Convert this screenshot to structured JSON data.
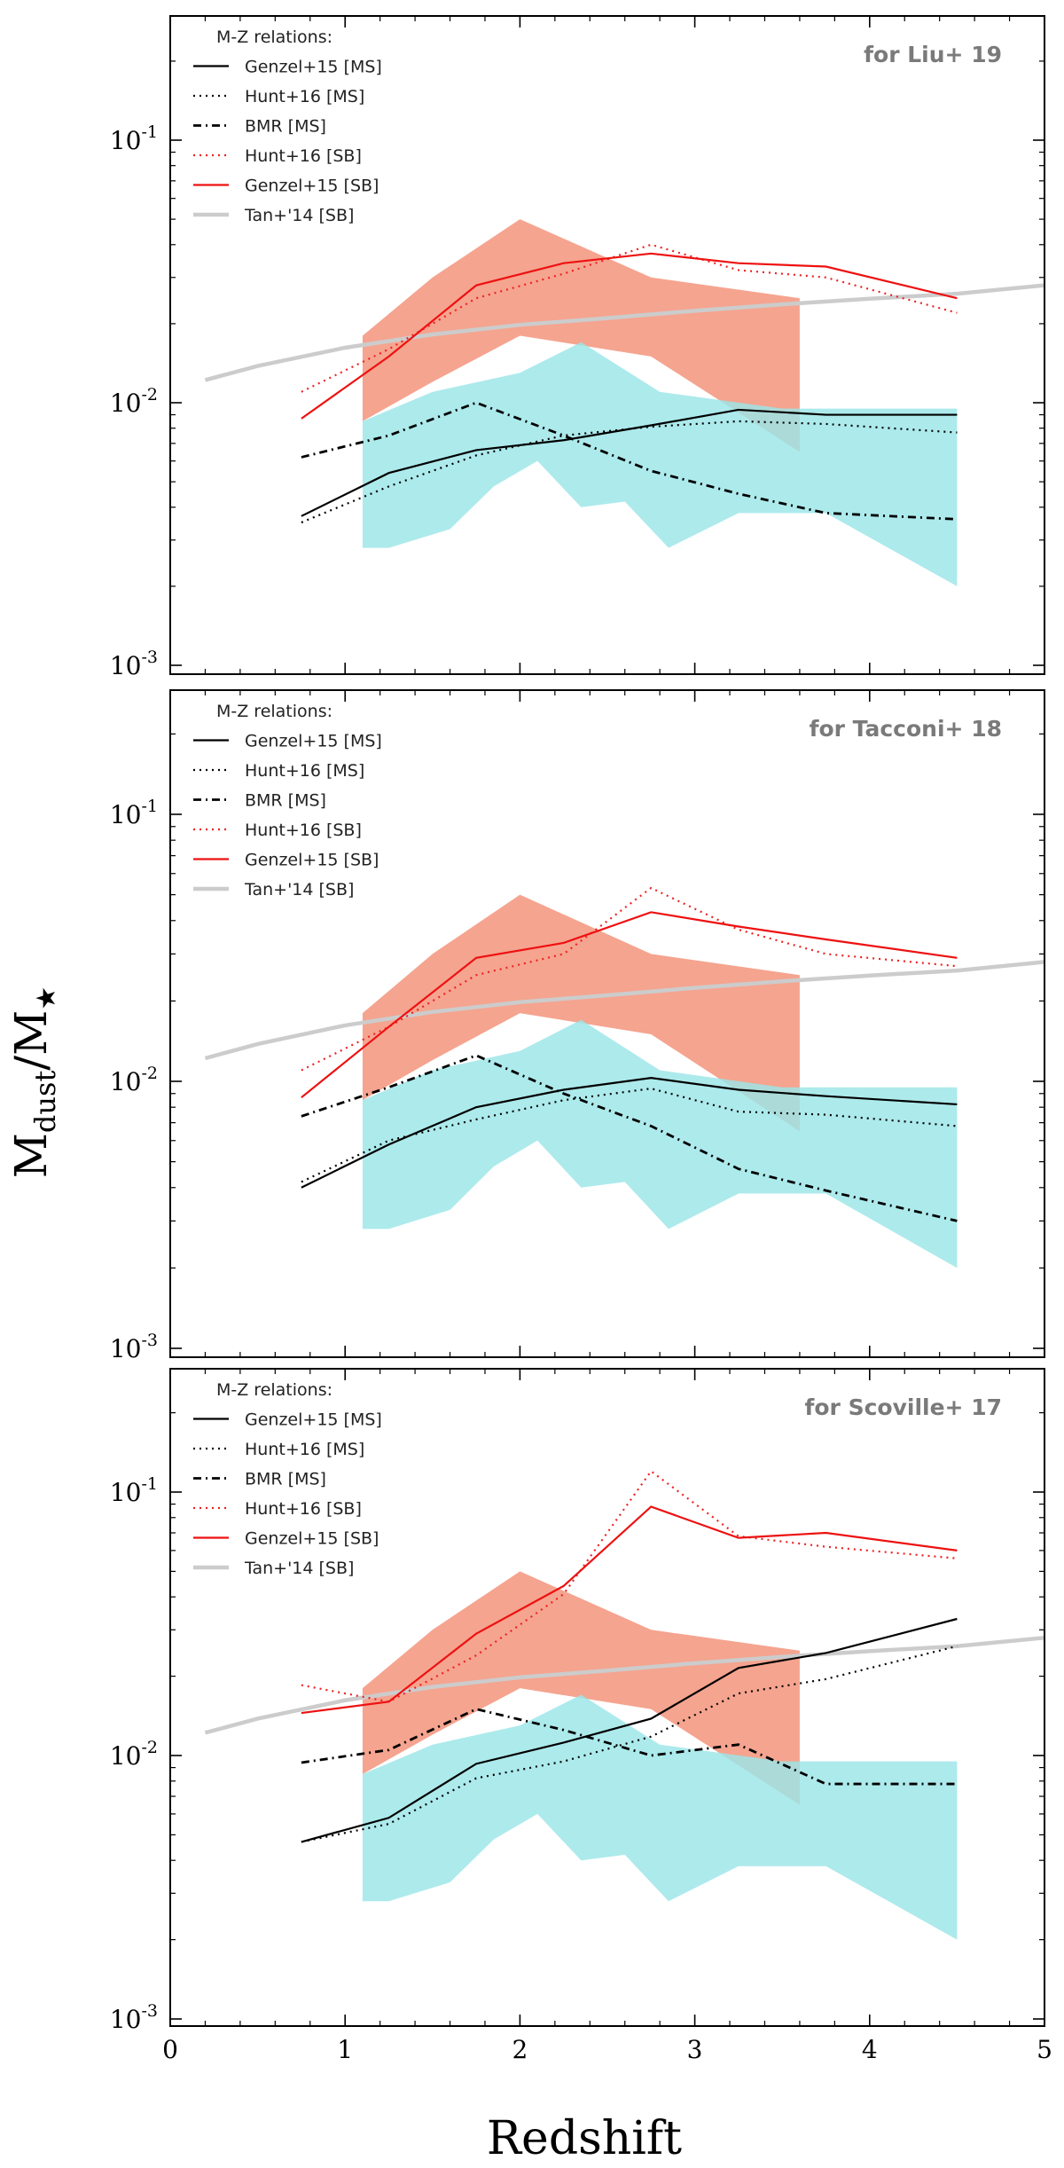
{
  "chart_data": {
    "type": "line",
    "shared_axes": {
      "xlabel": "Redshift",
      "ylabel_main": "M",
      "ylabel_sub1": "dust",
      "ylabel_slash": "/M",
      "ylabel_sub2": "★",
      "xlim": [
        0,
        5
      ],
      "ylim": [
        0.001,
        0.3
      ],
      "yscale": "log",
      "x_ticks": [
        0,
        1,
        2,
        3,
        4,
        5
      ],
      "x_tick_labels": [
        "0",
        "1",
        "2",
        "3",
        "4",
        "5"
      ],
      "y_ticks": [
        0.1,
        0.01,
        0.001
      ],
      "y_tick_base": "10",
      "y_tick_exponents": [
        "-1",
        "-2",
        "-3"
      ]
    },
    "legend_title": "M-Z relations:",
    "legend_entries": [
      "Genzel+15 [MS]",
      "Hunt+16 [MS]",
      "BMR [MS]",
      "Hunt+16 [SB]",
      "Genzel+15 [SB]",
      "Tan+'14 [SB]"
    ],
    "series_styles": {
      "genzel_ms": {
        "color": "#000000",
        "dash": "solid"
      },
      "hunt_ms": {
        "color": "#000000",
        "dash": "dotted"
      },
      "bmr_ms": {
        "color": "#000000",
        "dash": "dashdot"
      },
      "hunt_sb": {
        "color": "#ee2222",
        "dash": "dotted"
      },
      "genzel_sb": {
        "color": "#ee1111",
        "dash": "solid"
      },
      "tan_sb": {
        "color": "#cccccc",
        "dash": "solid"
      }
    },
    "bands": [
      {
        "name": "SB range",
        "color": "#f5a48f",
        "upper": [
          [
            1.1,
            0.018
          ],
          [
            1.5,
            0.03
          ],
          [
            2.0,
            0.05
          ],
          [
            2.75,
            0.03
          ],
          [
            3.6,
            0.025
          ]
        ],
        "lower": [
          [
            1.1,
            0.0085
          ],
          [
            1.5,
            0.012
          ],
          [
            2.0,
            0.018
          ],
          [
            2.75,
            0.015
          ],
          [
            3.6,
            0.0065
          ]
        ]
      },
      {
        "name": "MS range",
        "color": "#9be5e8",
        "upper": [
          [
            1.1,
            0.0085
          ],
          [
            1.5,
            0.011
          ],
          [
            2.0,
            0.013
          ],
          [
            2.35,
            0.017
          ],
          [
            2.8,
            0.011
          ],
          [
            3.5,
            0.0095
          ],
          [
            4.5,
            0.0095
          ]
        ],
        "lower": [
          [
            1.1,
            0.0028
          ],
          [
            1.25,
            0.0028
          ],
          [
            1.6,
            0.0033
          ],
          [
            1.85,
            0.0048
          ],
          [
            2.1,
            0.006
          ],
          [
            2.35,
            0.004
          ],
          [
            2.6,
            0.0042
          ],
          [
            2.85,
            0.0028
          ],
          [
            3.25,
            0.0038
          ],
          [
            3.75,
            0.0038
          ],
          [
            4.5,
            0.002
          ]
        ]
      }
    ],
    "tan_curve": {
      "x": [
        0.2,
        0.5,
        1.0,
        1.5,
        2.0,
        2.5,
        3.0,
        3.5,
        4.0,
        4.5,
        5.0
      ],
      "y": [
        0.0122,
        0.0138,
        0.0162,
        0.0182,
        0.0198,
        0.021,
        0.0224,
        0.0237,
        0.0249,
        0.026,
        0.028
      ]
    },
    "panels": [
      {
        "title": "for Liu+ 19",
        "series": [
          {
            "key": "genzel_ms",
            "name": "Genzel+15 [MS]",
            "x": [
              0.75,
              1.25,
              1.75,
              2.25,
              2.75,
              3.25,
              3.75,
              4.5
            ],
            "y": [
              0.0037,
              0.0054,
              0.0066,
              0.0072,
              0.0082,
              0.0094,
              0.009,
              0.009
            ]
          },
          {
            "key": "hunt_ms",
            "name": "Hunt+16 [MS]",
            "x": [
              0.75,
              1.25,
              1.75,
              2.25,
              2.75,
              3.25,
              3.75,
              4.5
            ],
            "y": [
              0.0035,
              0.0048,
              0.0063,
              0.0075,
              0.0081,
              0.0085,
              0.0083,
              0.0077
            ]
          },
          {
            "key": "bmr_ms",
            "name": "BMR [MS]",
            "x": [
              0.75,
              1.25,
              1.75,
              2.25,
              2.75,
              3.25,
              3.75,
              4.5
            ],
            "y": [
              0.0062,
              0.0075,
              0.01,
              0.0075,
              0.0055,
              0.0045,
              0.0038,
              0.0036
            ]
          },
          {
            "key": "hunt_sb",
            "name": "Hunt+16 [SB]",
            "x": [
              0.75,
              1.25,
              1.75,
              2.25,
              2.75,
              3.25,
              3.75,
              4.5
            ],
            "y": [
              0.011,
              0.016,
              0.025,
              0.031,
              0.04,
              0.032,
              0.03,
              0.022
            ]
          },
          {
            "key": "genzel_sb",
            "name": "Genzel+15 [SB]",
            "x": [
              0.75,
              1.25,
              1.75,
              2.25,
              2.75,
              3.25,
              3.75,
              4.5
            ],
            "y": [
              0.0087,
              0.015,
              0.028,
              0.034,
              0.037,
              0.034,
              0.033,
              0.025
            ]
          }
        ]
      },
      {
        "title": "for Tacconi+ 18",
        "series": [
          {
            "key": "genzel_ms",
            "name": "Genzel+15 [MS]",
            "x": [
              0.75,
              1.25,
              1.75,
              2.25,
              2.75,
              3.25,
              3.75,
              4.5
            ],
            "y": [
              0.004,
              0.0058,
              0.008,
              0.0093,
              0.0103,
              0.0093,
              0.0088,
              0.0082
            ]
          },
          {
            "key": "hunt_ms",
            "name": "Hunt+16 [MS]",
            "x": [
              0.75,
              1.25,
              1.75,
              2.25,
              2.75,
              3.25,
              3.75,
              4.5
            ],
            "y": [
              0.0042,
              0.006,
              0.0072,
              0.0085,
              0.0094,
              0.0077,
              0.0075,
              0.0068
            ]
          },
          {
            "key": "bmr_ms",
            "name": "BMR [MS]",
            "x": [
              0.75,
              1.25,
              1.75,
              2.25,
              2.75,
              3.25,
              3.75,
              4.5
            ],
            "y": [
              0.0074,
              0.0095,
              0.0125,
              0.009,
              0.0068,
              0.0047,
              0.0039,
              0.003
            ]
          },
          {
            "key": "hunt_sb",
            "name": "Hunt+16 [SB]",
            "x": [
              0.75,
              1.25,
              1.75,
              2.25,
              2.75,
              3.25,
              3.75,
              4.5
            ],
            "y": [
              0.011,
              0.016,
              0.025,
              0.03,
              0.053,
              0.037,
              0.03,
              0.027
            ]
          },
          {
            "key": "genzel_sb",
            "name": "Genzel+15 [SB]",
            "x": [
              0.75,
              1.25,
              1.75,
              2.25,
              2.75,
              3.25,
              3.75,
              4.5
            ],
            "y": [
              0.0087,
              0.016,
              0.029,
              0.033,
              0.043,
              0.038,
              0.034,
              0.029
            ]
          }
        ]
      },
      {
        "title": "for Scoville+ 17",
        "series": [
          {
            "key": "genzel_ms",
            "name": "Genzel+15 [MS]",
            "x": [
              0.75,
              1.25,
              1.75,
              2.25,
              2.75,
              3.25,
              3.75,
              4.5
            ],
            "y": [
              0.0047,
              0.0058,
              0.0093,
              0.0112,
              0.0138,
              0.0215,
              0.0245,
              0.033
            ]
          },
          {
            "key": "hunt_ms",
            "name": "Hunt+16 [MS]",
            "x": [
              0.75,
              1.25,
              1.75,
              2.25,
              2.75,
              3.25,
              3.75,
              4.5
            ],
            "y": [
              0.0047,
              0.0055,
              0.0082,
              0.0095,
              0.0118,
              0.0172,
              0.0195,
              0.026
            ]
          },
          {
            "key": "bmr_ms",
            "name": "BMR [MS]",
            "x": [
              0.75,
              1.25,
              1.75,
              2.25,
              2.75,
              3.25,
              3.75,
              4.5
            ],
            "y": [
              0.0094,
              0.0105,
              0.015,
              0.0125,
              0.01,
              0.011,
              0.0078,
              0.0078
            ]
          },
          {
            "key": "hunt_sb",
            "name": "Hunt+16 [SB]",
            "x": [
              0.75,
              1.25,
              1.75,
              2.25,
              2.75,
              3.25,
              3.75,
              4.5
            ],
            "y": [
              0.0185,
              0.016,
              0.024,
              0.041,
              0.12,
              0.068,
              0.062,
              0.056
            ]
          },
          {
            "key": "genzel_sb",
            "name": "Genzel+15 [SB]",
            "x": [
              0.75,
              1.25,
              1.75,
              2.25,
              2.75,
              3.25,
              3.75,
              4.5
            ],
            "y": [
              0.0145,
              0.016,
              0.029,
              0.044,
              0.088,
              0.067,
              0.07,
              0.06
            ]
          }
        ]
      }
    ]
  }
}
